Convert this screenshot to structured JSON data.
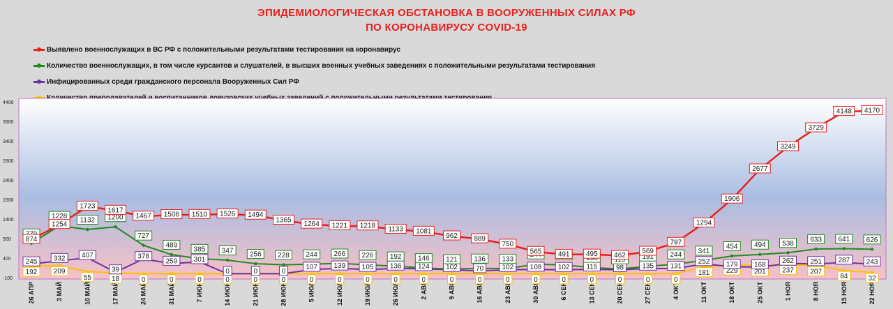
{
  "title_line1": "ЭПИДЕМИОЛОГИЧЕСКАЯ ОБСТАНОВКА В ВООРУЖЕННЫХ СИЛАХ РФ",
  "title_line2": "ПО КОРОНАВИРУСУ COVID-19",
  "chart_data": {
    "type": "line",
    "title": "ЭПИДЕМИОЛОГИЧЕСКАЯ ОБСТАНОВКА В ВООРУЖЕННЫХ СИЛАХ РФ ПО КОРОНАВИРУСУ COVID-19",
    "xlabel": "",
    "ylabel": "",
    "ylim": [
      -100,
      4400
    ],
    "yticks": [
      -100,
      400,
      900,
      1400,
      1900,
      2400,
      2900,
      3400,
      3900,
      4400
    ],
    "grid": false,
    "legend_position": "top-left",
    "categories": [
      "26 АПР",
      "3 МАЙ",
      "10 МАЙ",
      "17 МАЙ",
      "24 МАЙ",
      "31 МАЙ",
      "7 ИЮН",
      "14 ИЮН",
      "21 ИЮН",
      "28 ИЮН",
      "5 ИЮЛ",
      "12 ИЮЛ",
      "19 ИЮЛ",
      "26 ИЮЛ",
      "2 АВГ",
      "9 АВГ",
      "16 АВГ",
      "23 АВГ",
      "30 АВГ",
      "6 СЕН",
      "13 СЕН",
      "20 СЕН",
      "27 СЕН",
      "4 ОКТ",
      "11 ОКТ",
      "18 ОКТ",
      "25 ОКТ",
      "1 НОЯ",
      "8 НОЯ",
      "15 НОЯ",
      "22 НОЯ"
    ],
    "series": [
      {
        "name": "Выявлено военнослужащих в ВС РФ с положительными результатами тестирования на коронавирус",
        "color": "#e8201c",
        "values": [
          874,
          1254,
          1723,
          1617,
          1467,
          1506,
          1510,
          1526,
          1494,
          1365,
          1264,
          1221,
          1218,
          1133,
          1081,
          962,
          889,
          750,
          565,
          491,
          495,
          462,
          569,
          797,
          1294,
          1906,
          2677,
          3249,
          3729,
          4148,
          4170
        ]
      },
      {
        "name": "Количество военнослужащих, в том числе курсантов и слушателей, в высших военных учебных заведениях с положительными результатами тестирования",
        "color": "#1e8a1e",
        "values": [
          779,
          1228,
          1132,
          1200,
          727,
          489,
          385,
          347,
          256,
          228,
          244,
          266,
          226,
          192,
          146,
          121,
          136,
          133,
          244,
          223,
          158,
          119,
          191,
          244,
          341,
          454,
          494,
          538,
          633,
          641,
          626
        ]
      },
      {
        "name": "Инфицированных среди гражданского персонала Вооруженных Сил РФ",
        "color": "#7030a0",
        "values": [
          245,
          332,
          407,
          39,
          378,
          259,
          301,
          0,
          0,
          0,
          107,
          139,
          105,
          136,
          124,
          102,
          70,
          102,
          108,
          102,
          115,
          98,
          135,
          131,
          252,
          179,
          168,
          262,
          251,
          287,
          243
        ]
      },
      {
        "name": "Количество преподавателей и воспитанников довузовских учебных заведений с положительными результатами тестирования",
        "color": "#ffc000",
        "values": [
          192,
          209,
          55,
          18,
          0,
          0,
          0,
          0,
          0,
          0,
          0,
          0,
          0,
          0,
          0,
          0,
          0,
          0,
          0,
          0,
          0,
          0,
          0,
          0,
          181,
          229,
          201,
          237,
          207,
          84,
          32
        ]
      }
    ]
  }
}
